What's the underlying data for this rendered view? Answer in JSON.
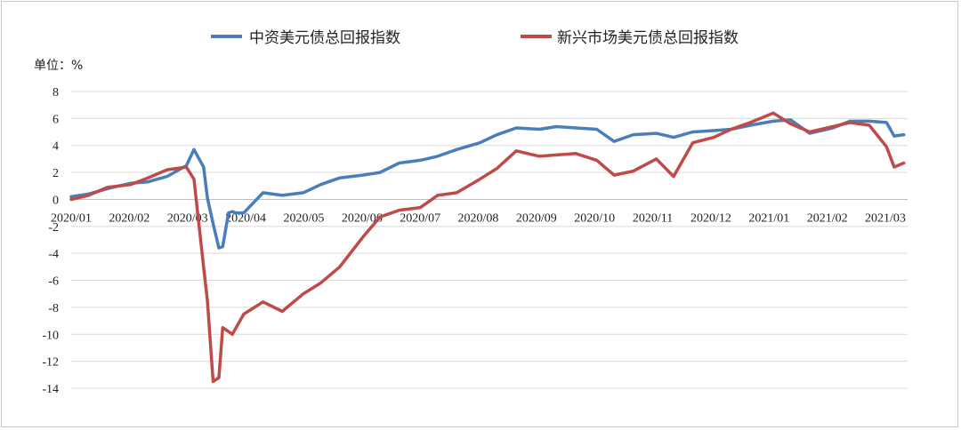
{
  "chart_data": {
    "type": "line",
    "unit_label": "单位：%",
    "ylim": [
      -14,
      8
    ],
    "yticks": [
      8,
      6,
      4,
      2,
      0,
      -2,
      -4,
      -6,
      -8,
      -10,
      -12,
      -14
    ],
    "grid": "horizontal",
    "legend_position": "top-center",
    "categories": [
      "2020/01",
      "2020/02",
      "2020/03",
      "2020/04",
      "2020/05",
      "2020/06",
      "2020/07",
      "2020/08",
      "2020/09",
      "2020/10",
      "2020/11",
      "2020/12",
      "2021/01",
      "2021/02",
      "2021/03"
    ],
    "x": [
      "2020-01-01",
      "2020-01-10",
      "2020-01-20",
      "2020-02-01",
      "2020-02-10",
      "2020-02-20",
      "2020-03-01",
      "2020-03-05",
      "2020-03-10",
      "2020-03-12",
      "2020-03-15",
      "2020-03-18",
      "2020-03-20",
      "2020-03-23",
      "2020-03-25",
      "2020-03-27",
      "2020-03-31",
      "2020-04-10",
      "2020-04-20",
      "2020-05-01",
      "2020-05-10",
      "2020-05-20",
      "2020-06-01",
      "2020-06-10",
      "2020-06-20",
      "2020-07-01",
      "2020-07-10",
      "2020-07-20",
      "2020-08-01",
      "2020-08-10",
      "2020-08-20",
      "2020-09-01",
      "2020-09-10",
      "2020-09-20",
      "2020-10-01",
      "2020-10-10",
      "2020-10-20",
      "2020-11-01",
      "2020-11-10",
      "2020-11-20",
      "2020-12-01",
      "2020-12-10",
      "2020-12-20",
      "2021-01-01",
      "2021-01-10",
      "2021-01-20",
      "2021-02-01",
      "2021-02-10",
      "2021-02-20",
      "2021-03-01",
      "2021-03-05",
      "2021-03-10"
    ],
    "series": [
      {
        "name": "中资美元债总回报指数",
        "color": "#4a7ebb",
        "values": [
          0.2,
          0.4,
          0.8,
          1.2,
          1.3,
          1.7,
          2.5,
          3.7,
          2.4,
          0.1,
          -1.8,
          -3.6,
          -3.5,
          -1.0,
          -0.9,
          -1.0,
          -1.0,
          0.5,
          0.3,
          0.5,
          1.1,
          1.6,
          1.8,
          2.0,
          2.7,
          2.9,
          3.2,
          3.7,
          4.2,
          4.8,
          5.3,
          5.2,
          5.4,
          5.3,
          5.2,
          4.3,
          4.8,
          4.9,
          4.6,
          5.0,
          5.1,
          5.2,
          5.5,
          5.8,
          5.9,
          4.9,
          5.3,
          5.8,
          5.8,
          5.7,
          4.7,
          4.8
        ]
      },
      {
        "name": "新兴市场美元债总回报指数",
        "color": "#be4b48",
        "values": [
          0.0,
          0.3,
          0.9,
          1.1,
          1.6,
          2.2,
          2.4,
          1.5,
          -5.0,
          -7.5,
          -13.5,
          -13.2,
          -9.5,
          -9.8,
          -10.0,
          -9.5,
          -8.5,
          -7.6,
          -8.3,
          -7.0,
          -6.2,
          -5.0,
          -2.8,
          -1.3,
          -0.8,
          -0.6,
          0.3,
          0.5,
          1.5,
          2.3,
          3.6,
          3.2,
          3.3,
          3.4,
          2.9,
          1.8,
          2.1,
          3.0,
          1.7,
          4.2,
          4.6,
          5.2,
          5.7,
          6.4,
          5.6,
          5.0,
          5.4,
          5.7,
          5.5,
          3.9,
          2.4,
          2.7
        ]
      }
    ]
  }
}
